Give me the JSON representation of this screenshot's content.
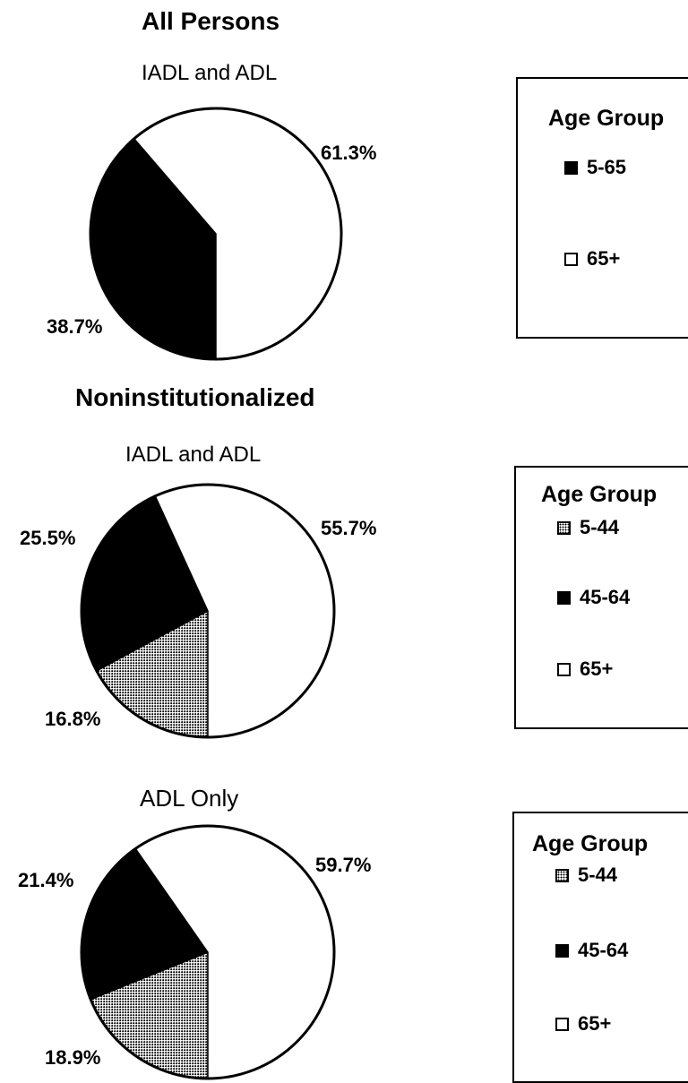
{
  "colors": {
    "black": "#000000",
    "white": "#ffffff",
    "pattern": "dotted"
  },
  "sections": {
    "all_persons": {
      "heading": "All Persons"
    },
    "noninstitutionalized": {
      "heading": "Noninstitutionalized"
    }
  },
  "chart_data": [
    {
      "type": "pie",
      "title": "IADL and ADL",
      "slices": [
        {
          "name": "5-65",
          "value": 38.7,
          "label": "38.7%",
          "fill": "black"
        },
        {
          "name": "65+",
          "value": 61.3,
          "label": "61.3%",
          "fill": "white"
        }
      ],
      "legend": {
        "title": "Age Group",
        "placement": "right",
        "items": [
          "5-65",
          "65+"
        ]
      }
    },
    {
      "type": "pie",
      "title": "IADL and ADL",
      "slices": [
        {
          "name": "5-44",
          "value": 16.8,
          "label": "16.8%",
          "fill": "pattern"
        },
        {
          "name": "45-64",
          "value": 25.5,
          "label": "25.5%",
          "fill": "black"
        },
        {
          "name": "65+",
          "value": 55.7,
          "label": "55.7%",
          "fill": "white"
        }
      ],
      "legend": {
        "title": "Age Group",
        "placement": "right",
        "items": [
          "5-44",
          "45-64",
          "65+"
        ]
      }
    },
    {
      "type": "pie",
      "title": "ADL Only",
      "slices": [
        {
          "name": "5-44",
          "value": 18.9,
          "label": "18.9%",
          "fill": "pattern"
        },
        {
          "name": "45-64",
          "value": 21.4,
          "label": "21.4%",
          "fill": "black"
        },
        {
          "name": "65+",
          "value": 59.7,
          "label": "59.7%",
          "fill": "white"
        }
      ],
      "legend": {
        "title": "Age Group",
        "placement": "right",
        "items": [
          "5-44",
          "45-64",
          "65+"
        ]
      }
    }
  ]
}
